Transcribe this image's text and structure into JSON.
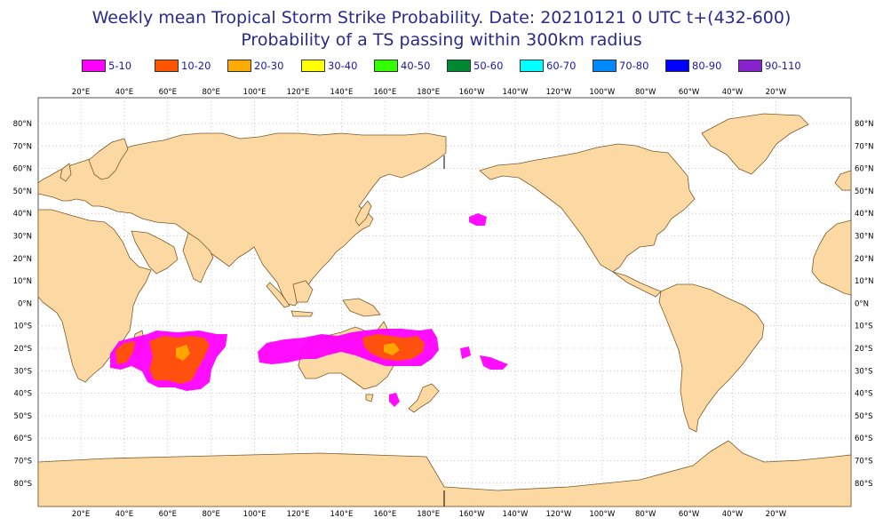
{
  "title": {
    "line1": "Weekly mean Tropical Storm Strike Probability. Date: 20210121  0 UTC    t+(432-600)",
    "line2": "Probability of a TS passing within  300km radius"
  },
  "legend": [
    {
      "label": "5-10",
      "color": "#ff00ff"
    },
    {
      "label": "10-20",
      "color": "#ff5500"
    },
    {
      "label": "20-30",
      "color": "#ffaa00"
    },
    {
      "label": "30-40",
      "color": "#ffff00"
    },
    {
      "label": "40-50",
      "color": "#33ff00"
    },
    {
      "label": "50-60",
      "color": "#008833"
    },
    {
      "label": "60-70",
      "color": "#00ffff"
    },
    {
      "label": "70-80",
      "color": "#0088ff"
    },
    {
      "label": "80-90",
      "color": "#0000ff"
    },
    {
      "label": "90-110",
      "color": "#8822cc"
    }
  ],
  "map": {
    "land_color": "#fcd9a2",
    "coast_color": "#7a5a2a",
    "lon_labels": [
      "20°E",
      "40°E",
      "60°E",
      "80°E",
      "100°E",
      "120°E",
      "140°E",
      "160°E",
      "180°E",
      "160°W",
      "140°W",
      "120°W",
      "100°W",
      "80°W",
      "60°W",
      "40°W",
      "20°W"
    ],
    "lat_labels": [
      "80°N",
      "70°N",
      "60°N",
      "50°N",
      "40°N",
      "30°N",
      "20°N",
      "10°N",
      "0°N",
      "10°S",
      "20°S",
      "30°S",
      "40°S",
      "50°S",
      "60°S",
      "70°S",
      "80°S"
    ]
  }
}
